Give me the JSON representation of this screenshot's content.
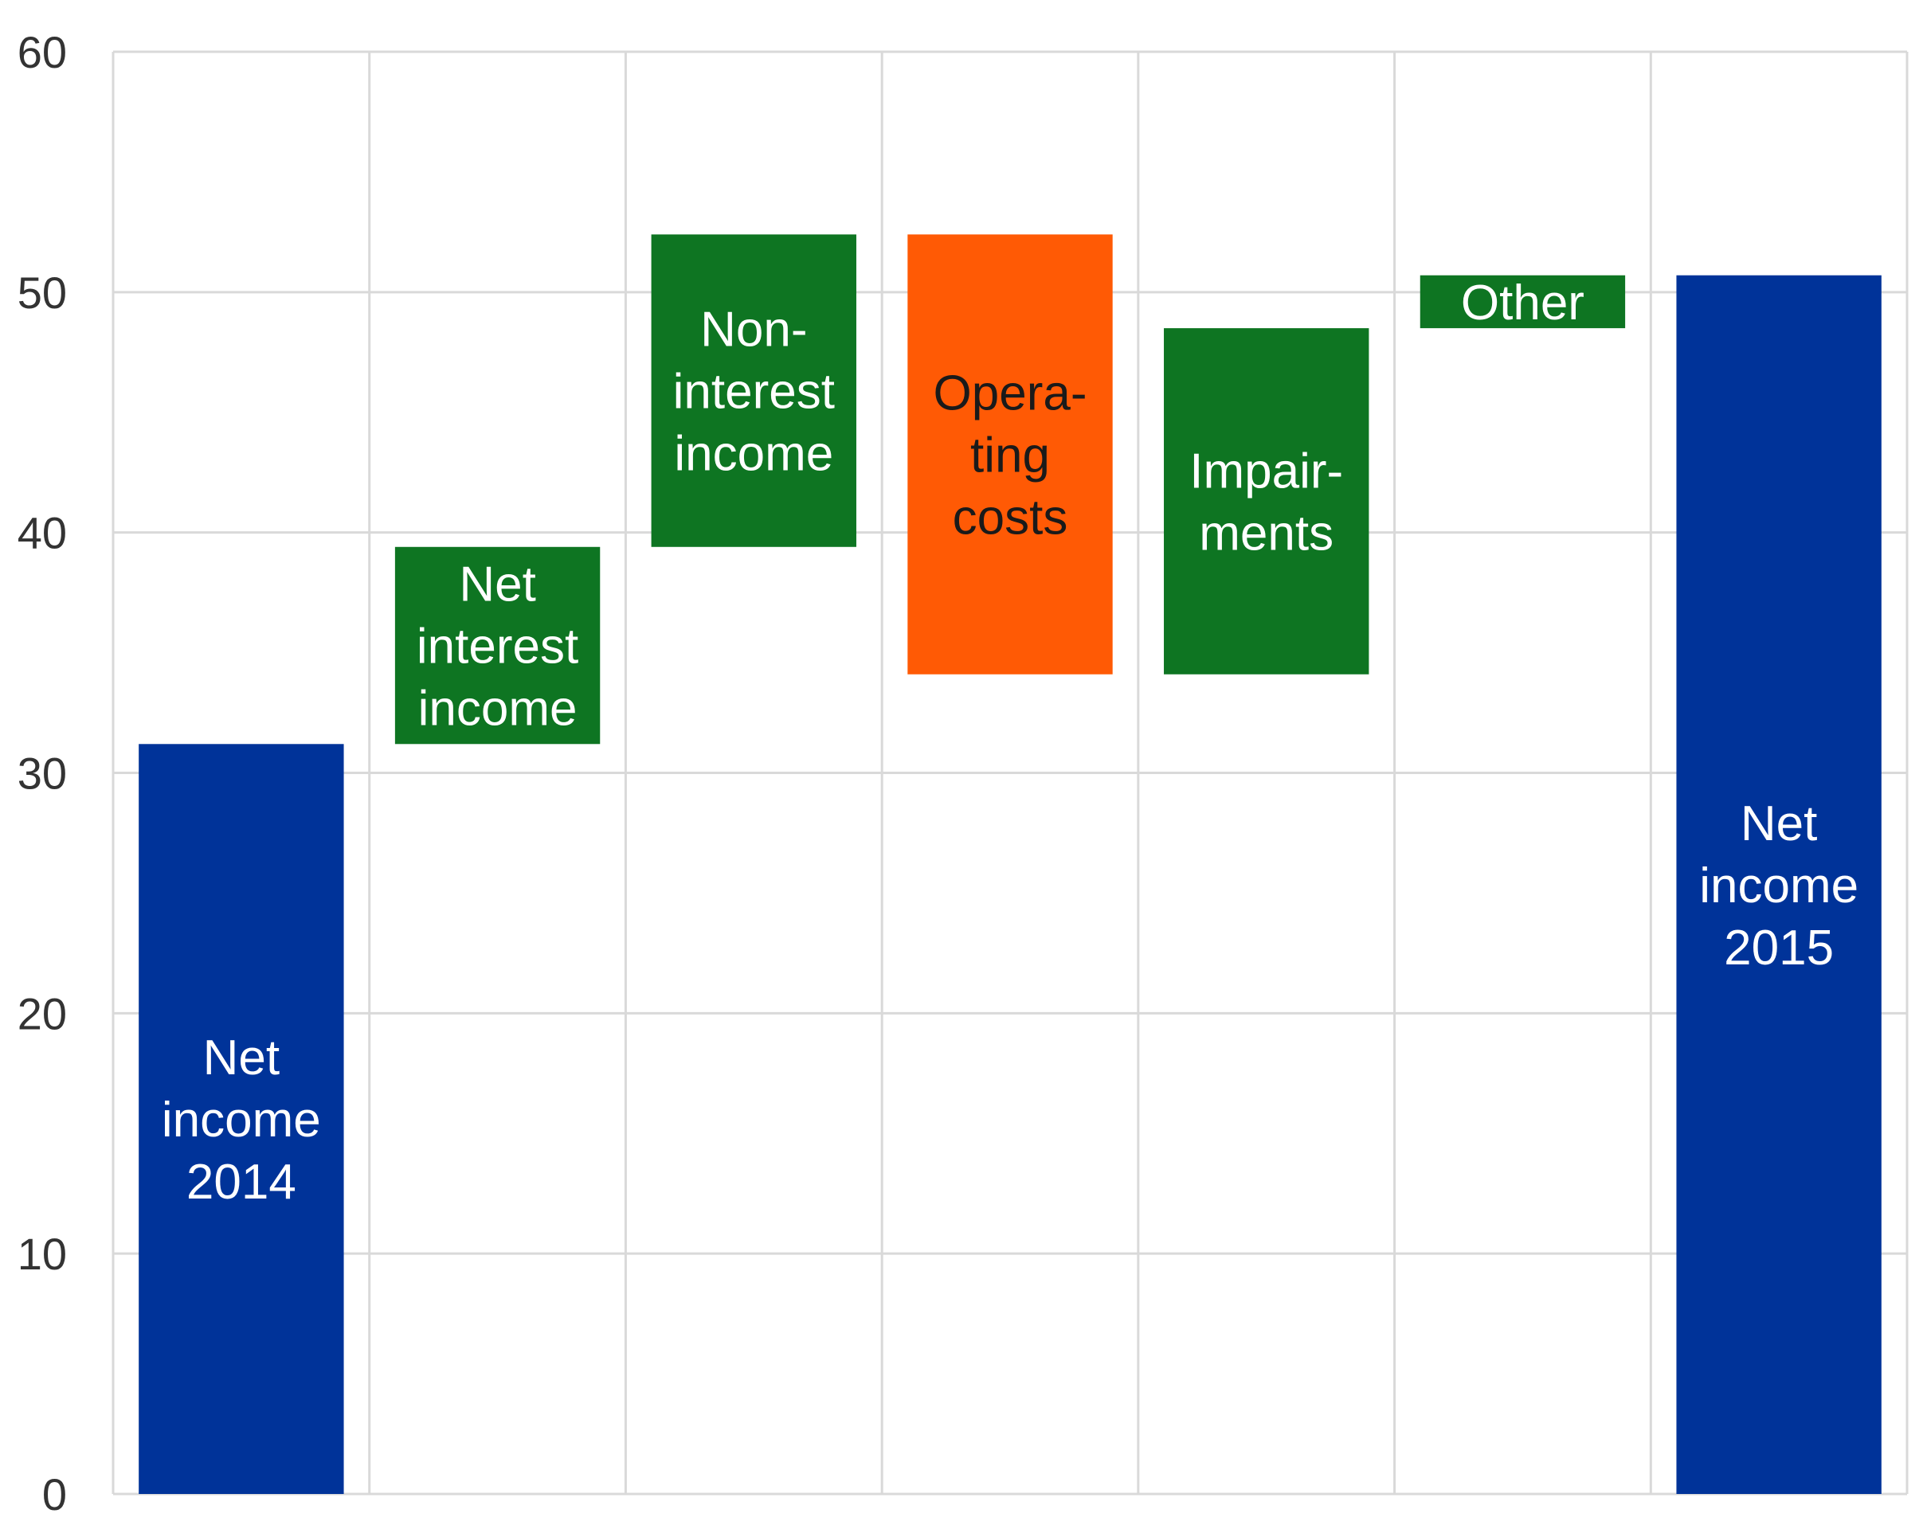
{
  "chart_data": {
    "type": "bar",
    "subtype": "waterfall",
    "title": "",
    "xlabel": "",
    "ylabel": "",
    "ylim": [
      0,
      60
    ],
    "yticks": [
      0,
      10,
      20,
      30,
      40,
      50,
      60
    ],
    "grid": true,
    "legend": "none",
    "bars": [
      {
        "label": [
          "Net",
          "income",
          "2014"
        ],
        "start": 0,
        "end": 31.2,
        "color": "#003399",
        "label_color": "#ffffff"
      },
      {
        "label": [
          "Net",
          "interest",
          "income"
        ],
        "start": 31.2,
        "end": 39.4,
        "color": "#0e7522",
        "label_color": "#ffffff"
      },
      {
        "label": [
          "Non-",
          "interest",
          "income"
        ],
        "start": 39.4,
        "end": 52.4,
        "color": "#0e7522",
        "label_color": "#ffffff"
      },
      {
        "label": [
          "Opera-",
          "ting",
          "costs"
        ],
        "start": 52.4,
        "end": 34.1,
        "color": "#ff5a05",
        "label_color": "#1a1a1a"
      },
      {
        "label": [
          "Impair-",
          "ments"
        ],
        "start": 34.1,
        "end": 48.5,
        "color": "#0e7522",
        "label_color": "#ffffff"
      },
      {
        "label": [
          "Other"
        ],
        "start": 48.5,
        "end": 50.7,
        "color": "#0e7522",
        "label_color": "#ffffff"
      },
      {
        "label": [
          "Net",
          "income",
          "2015"
        ],
        "start": 0,
        "end": 50.7,
        "color": "#003399",
        "label_color": "#ffffff"
      }
    ]
  }
}
